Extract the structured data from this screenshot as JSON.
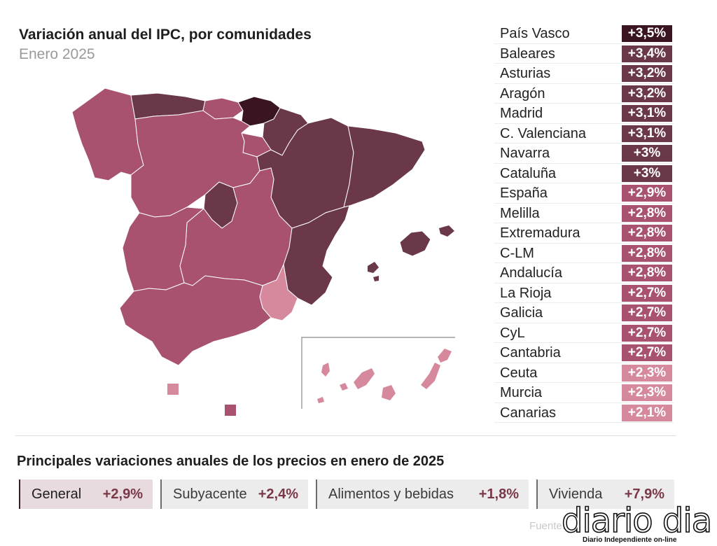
{
  "header": {
    "title": "Variación anual del IPC, por comunidades",
    "subtitle": "Enero 2025"
  },
  "legend_colors": {
    "range_3_5": "#3a1420",
    "range_3_0_3_4": "#6b3849",
    "range_2_6_2_9": "#a8526f",
    "range_2_5_less": "#d6889d"
  },
  "ranking": [
    {
      "region": "País Vasco",
      "value": 3.5,
      "label": "+3,5%",
      "color": "#3a1420"
    },
    {
      "region": "Baleares",
      "value": 3.4,
      "label": "+3,4%",
      "color": "#6b3849"
    },
    {
      "region": "Asturias",
      "value": 3.2,
      "label": "+3,2%",
      "color": "#6b3849"
    },
    {
      "region": "Aragón",
      "value": 3.2,
      "label": "+3,2%",
      "color": "#6b3849"
    },
    {
      "region": "Madrid",
      "value": 3.1,
      "label": "+3,1%",
      "color": "#6b3849"
    },
    {
      "region": "C. Valenciana",
      "value": 3.1,
      "label": "+3,1%",
      "color": "#6b3849"
    },
    {
      "region": "Navarra",
      "value": 3.0,
      "label": "+3%",
      "color": "#6b3849"
    },
    {
      "region": "Cataluña",
      "value": 3.0,
      "label": "+3%",
      "color": "#6b3849"
    },
    {
      "region": "España",
      "value": 2.9,
      "label": "+2,9%",
      "color": "#a8526f"
    },
    {
      "region": "Melilla",
      "value": 2.8,
      "label": "+2,8%",
      "color": "#a8526f"
    },
    {
      "region": "Extremadura",
      "value": 2.8,
      "label": "+2,8%",
      "color": "#a8526f"
    },
    {
      "region": "C-LM",
      "value": 2.8,
      "label": "+2,8%",
      "color": "#a8526f"
    },
    {
      "region": "Andalucía",
      "value": 2.8,
      "label": "+2,8%",
      "color": "#a8526f"
    },
    {
      "region": "La Rioja",
      "value": 2.7,
      "label": "+2,7%",
      "color": "#a8526f"
    },
    {
      "region": "Galicia",
      "value": 2.7,
      "label": "+2,7%",
      "color": "#a8526f"
    },
    {
      "region": "CyL",
      "value": 2.7,
      "label": "+2,7%",
      "color": "#a8526f"
    },
    {
      "region": "Cantabria",
      "value": 2.7,
      "label": "+2,7%",
      "color": "#a8526f"
    },
    {
      "region": "Ceuta",
      "value": 2.3,
      "label": "+2,3%",
      "color": "#d6889d"
    },
    {
      "region": "Murcia",
      "value": 2.3,
      "label": "+2,3%",
      "color": "#d6889d"
    },
    {
      "region": "Canarias",
      "value": 2.1,
      "label": "+2,1%",
      "color": "#d6889d"
    }
  ],
  "section": {
    "title": "Principales variaciones anuales de los precios en enero de 2025"
  },
  "tiles": [
    {
      "label": "General",
      "value": "+2,9%",
      "active": true
    },
    {
      "label": "Subyacente",
      "value": "+2,4%"
    },
    {
      "label": "Alimentos y bebidas",
      "value": "+1,8%"
    },
    {
      "label": "Vivienda",
      "value": "+7,9%"
    }
  ],
  "footer": {
    "source": "Fuente:",
    "logo_text": "diario dia",
    "logo_tagline": "Diario Independiente on-line"
  }
}
